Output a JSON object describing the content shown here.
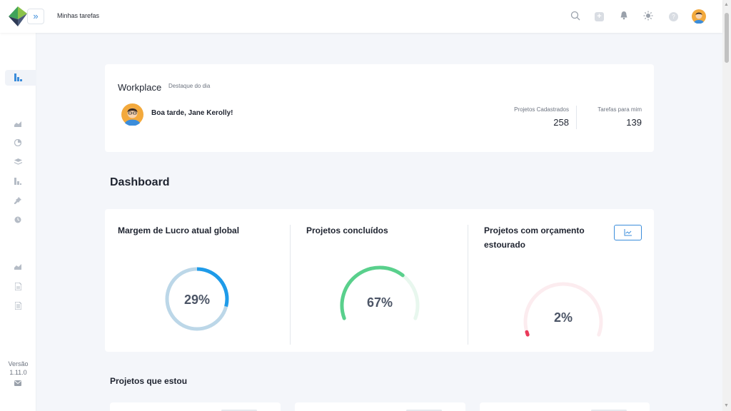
{
  "header": {
    "page_title": "Minhas tarefas",
    "icons": [
      "search-icon",
      "add-icon",
      "bell-icon",
      "sun-icon",
      "help-icon"
    ]
  },
  "sidebar": {
    "icons": [
      "dashboard-icon",
      "area-chart-icon",
      "pie-chart-icon",
      "layers-icon",
      "bar-chart-icon",
      "pin-icon",
      "clock-icon",
      "line-chart-icon",
      "document-icon",
      "list-document-icon"
    ],
    "version_label": "Versão",
    "version_number": "1.11.0",
    "mail_icon": "mail-icon"
  },
  "workplace": {
    "title": "Workplace",
    "subtitle": "Destaque do dia",
    "greeting": "Boa tarde, Jane Kerolly!",
    "stats": [
      {
        "label": "Projetos Cadastrados",
        "value": "258"
      },
      {
        "label": "Tarefas para mim",
        "value": "139"
      }
    ]
  },
  "dashboard": {
    "title": "Dashboard",
    "kpis": [
      {
        "title": "Margem de Lucro atual global",
        "value_text": "29%",
        "percent": 29,
        "type": "ring",
        "color": "#1e9be9",
        "track": "#bcd7e8"
      },
      {
        "title": "Projetos concluídos",
        "value_text": "67%",
        "percent": 67,
        "type": "gauge",
        "color": "#59d08c",
        "track": "#e8f7ee"
      },
      {
        "title_line1": "Projetos com orçamento",
        "title_line2": "estourado",
        "value_text": "2%",
        "percent": 2,
        "type": "gauge",
        "color": "#ea3a5a",
        "track": "#fcecef"
      }
    ],
    "chart_button_icon": "line-chart-icon"
  },
  "projects": {
    "title": "Projetos que estou"
  }
}
